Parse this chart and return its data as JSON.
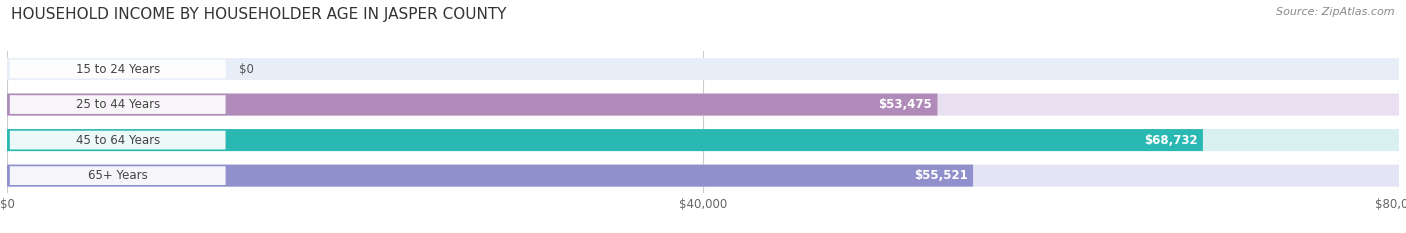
{
  "title": "HOUSEHOLD INCOME BY HOUSEHOLDER AGE IN JASPER COUNTY",
  "source": "Source: ZipAtlas.com",
  "categories": [
    "15 to 24 Years",
    "25 to 44 Years",
    "45 to 64 Years",
    "65+ Years"
  ],
  "values": [
    0,
    53475,
    68732,
    55521
  ],
  "labels": [
    "$0",
    "$53,475",
    "$68,732",
    "$55,521"
  ],
  "bar_colors": [
    "#a8c4e0",
    "#b08ab8",
    "#2ab8b2",
    "#9090cc"
  ],
  "bar_bg_colors": [
    "#e8eef8",
    "#e8e0f0",
    "#d8f0f0",
    "#e4e4f4"
  ],
  "xlim": [
    0,
    80000
  ],
  "xticks": [
    0,
    40000,
    80000
  ],
  "xtick_labels": [
    "$0",
    "$40,000",
    "$80,000"
  ],
  "figsize": [
    14.06,
    2.33
  ],
  "dpi": 100,
  "title_fontsize": 11,
  "label_fontsize": 8.5,
  "tick_fontsize": 8.5,
  "source_fontsize": 8
}
